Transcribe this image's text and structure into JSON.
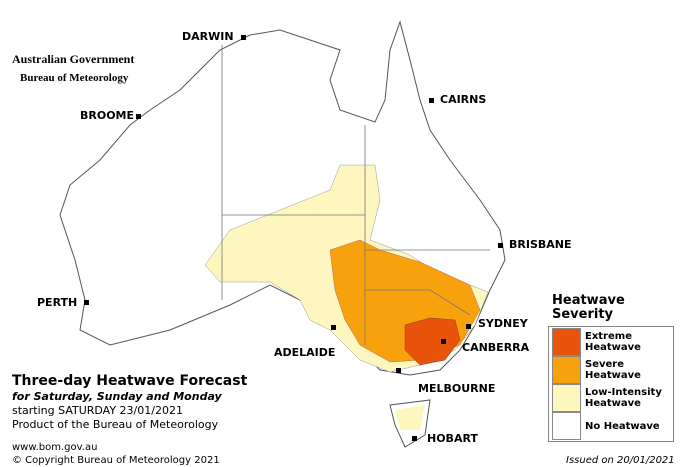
{
  "header": {
    "agency": "Australian Government",
    "bureau": "Bureau of Meteorology"
  },
  "cities": [
    {
      "label": "DARWIN"
    },
    {
      "label": "CAIRNS"
    },
    {
      "label": "BROOME"
    },
    {
      "label": "BRISBANE"
    },
    {
      "label": "PERTH"
    },
    {
      "label": "SYDNEY"
    },
    {
      "label": "ADELAIDE"
    },
    {
      "label": "CANBERRA"
    },
    {
      "label": "MELBOURNE"
    },
    {
      "label": "HOBART"
    }
  ],
  "title": {
    "main": "Three-day Heatwave Forecast",
    "days": "for Saturday, Sunday and Monday",
    "start": "starting SATURDAY 23/01/2021",
    "product": "Product of the Bureau of Meteorology"
  },
  "legend": {
    "title": "Heatwave Severity",
    "items": [
      {
        "label": "Extreme Heatwave",
        "color": "#e8540c"
      },
      {
        "label": "Severe Heatwave",
        "color": "#f7a20c"
      },
      {
        "label": "Low-Intensity Heatwave",
        "color": "#fdf7bf"
      },
      {
        "label": "No Heatwave",
        "color": "#ffffff"
      }
    ]
  },
  "footer": {
    "url": "www.bom.gov.au",
    "copyright": "© Copyright Bureau of Meteorology 2021",
    "issued": "Issued on 20/01/2021"
  }
}
